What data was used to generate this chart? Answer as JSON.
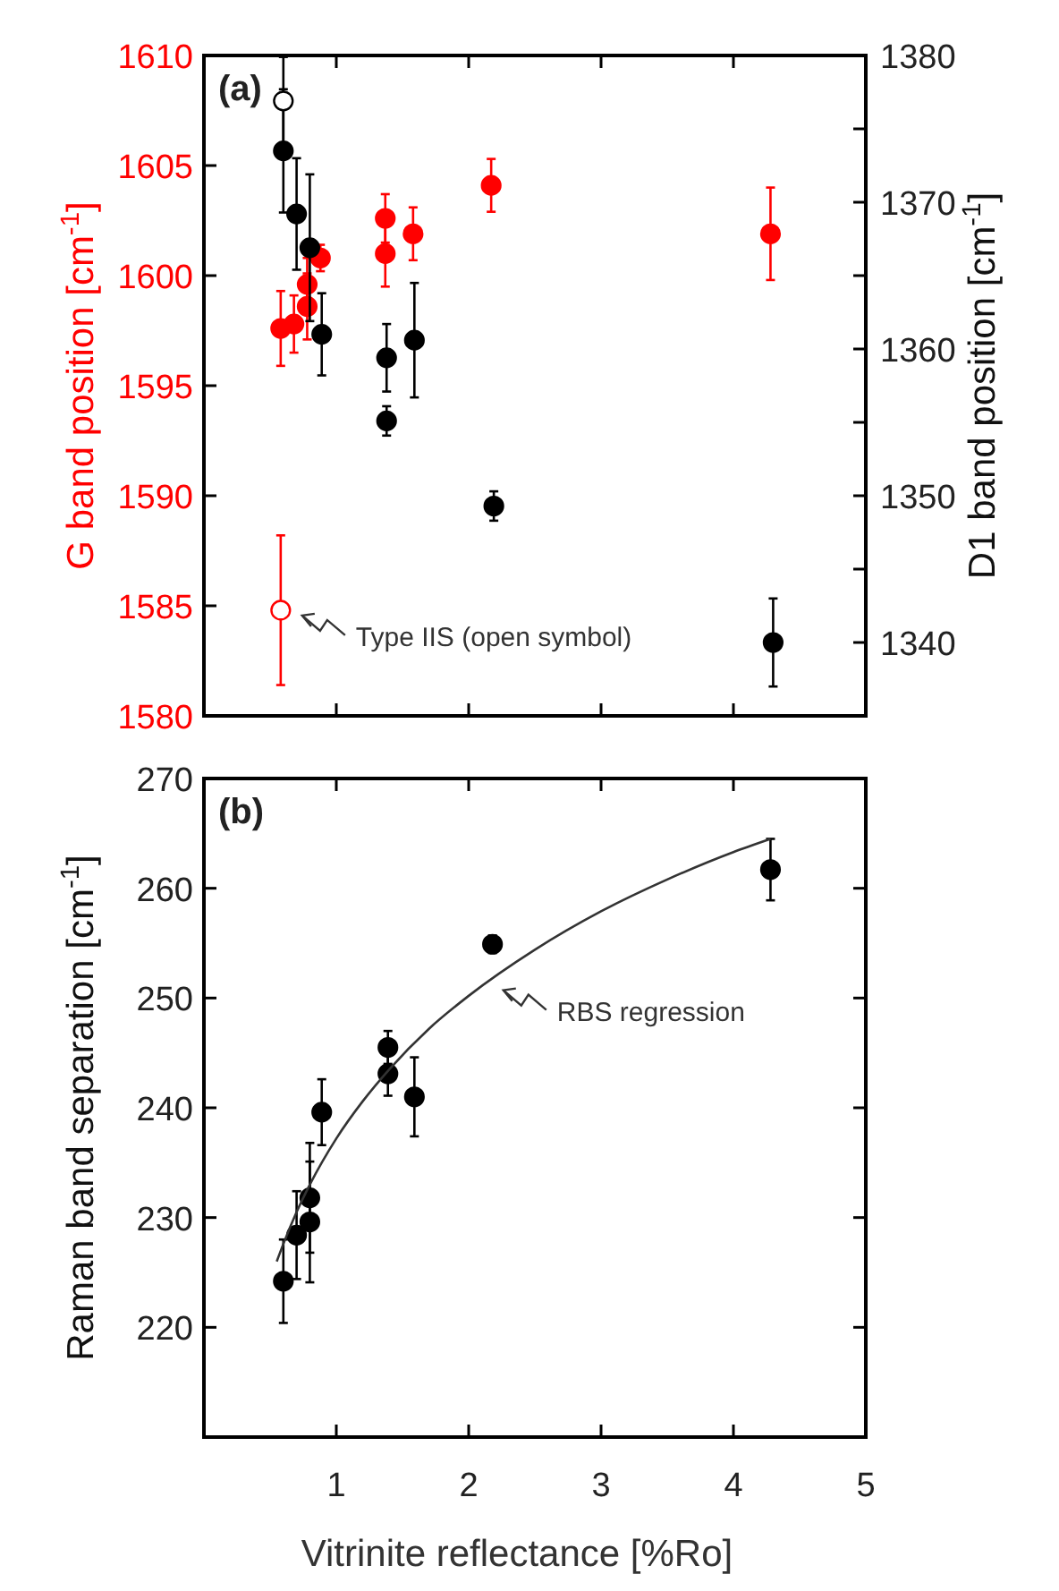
{
  "chart_data": [
    {
      "type": "scatter",
      "title": "(a)",
      "ylabel": "G band position [cm$^{-1}$]",
      "y2label": "D1 band position [cm$^{-1}$]",
      "xlim": [
        0,
        5
      ],
      "xticks": [
        1,
        2,
        3,
        4,
        5
      ],
      "tick_labels": "y",
      "ylim": [
        1580,
        1610
      ],
      "yticks": [
        1580,
        1585,
        1590,
        1595,
        1600,
        1605,
        1610
      ],
      "y2lim": [
        1335,
        1380
      ],
      "y2ticks": [
        1340,
        {
          "value": 1345,
          "label": null
        },
        1350,
        {
          "value": 1355,
          "label": null
        },
        1360,
        {
          "value": 1365,
          "label": null
        },
        1370,
        {
          "value": 1375,
          "label": null
        },
        1380
      ],
      "marker": "circle",
      "grid": false,
      "series": [
        {
          "color": "#ff0000",
          "x": [
            0.58,
            0.68,
            0.78,
            0.78,
            0.88,
            1.37,
            1.37,
            1.58,
            2.17,
            4.28
          ],
          "values": [
            1597.6,
            1597.8,
            1599.6,
            1598.6,
            1600.8,
            1601.0,
            1602.6,
            1601.9,
            1604.1,
            1601.9
          ],
          "errors": [
            1.7,
            1.3,
            1.2,
            1.5,
            0.6,
            1.5,
            1.1,
            1.2,
            1.2,
            2.1
          ]
        },
        {
          "color": "#ff0000",
          "colors": [
            "#ffffff"
          ],
          "x": [
            0.58
          ],
          "values": [
            1584.8
          ],
          "errors": [
            3.4
          ]
        },
        {
          "color": "#000000",
          "axis": "y2",
          "x": [
            0.6,
            0.7,
            0.8,
            0.89,
            1.38,
            1.38,
            1.59,
            2.19,
            4.3
          ],
          "values": [
            1373.5,
            1369.2,
            1366.9,
            1361.0,
            1359.4,
            1355.1,
            1360.6,
            1349.3,
            1340.0
          ],
          "errors": [
            4.2,
            3.8,
            5.0,
            2.8,
            2.3,
            1.0,
            3.9,
            1.0,
            3.0
          ]
        },
        {
          "color": "#000000",
          "colors": [
            "#ffffff"
          ],
          "axis": "y2",
          "x": [
            0.6
          ],
          "values": [
            1376.9
          ],
          "errors": [
            3.0
          ]
        }
      ],
      "annotations": [
        {
          "text": "Type IIS (open symbol)",
          "x": 0.58,
          "y": 1584.8
        }
      ]
    },
    {
      "type": "scatter",
      "title": "(b)",
      "ylabel": "Raman band separation [cm$^{-1}$]",
      "xlabel": "Vitrinite reflectance [%Ro]",
      "xlim": [
        0,
        5
      ],
      "xticks": [
        1,
        2,
        3,
        4,
        5
      ],
      "ylim": [
        210,
        270
      ],
      "yticks": [
        220,
        230,
        240,
        250,
        260,
        270
      ],
      "grid": false,
      "series": [
        {
          "color": "#000000",
          "marker": "circle",
          "x": [
            0.6,
            0.7,
            0.8,
            0.8,
            0.89,
            1.39,
            1.39,
            1.59,
            2.18,
            4.28
          ],
          "values": [
            224.2,
            228.4,
            231.8,
            229.6,
            239.6,
            245.5,
            243.1,
            241.0,
            254.9,
            261.7
          ],
          "errors": [
            3.8,
            4.0,
            5.0,
            5.5,
            3.0,
            1.5,
            2.0,
            3.6,
            0.8,
            2.8
          ]
        },
        {
          "type": "line",
          "color": "#333333",
          "x": [
            0.55,
            0.6,
            0.7,
            0.8,
            1.0,
            1.2,
            1.4,
            1.7,
            2.0,
            2.5,
            3.0,
            3.5,
            4.0,
            4.28
          ],
          "values": [
            226.0,
            227.6,
            230.5,
            233.0,
            237.2,
            240.6,
            243.5,
            247.2,
            250.2,
            254.4,
            257.9,
            260.8,
            263.3,
            264.5
          ]
        }
      ],
      "annotations": [
        {
          "text": "RBS regression",
          "x": 2.1,
          "y": 251.2
        }
      ]
    }
  ]
}
